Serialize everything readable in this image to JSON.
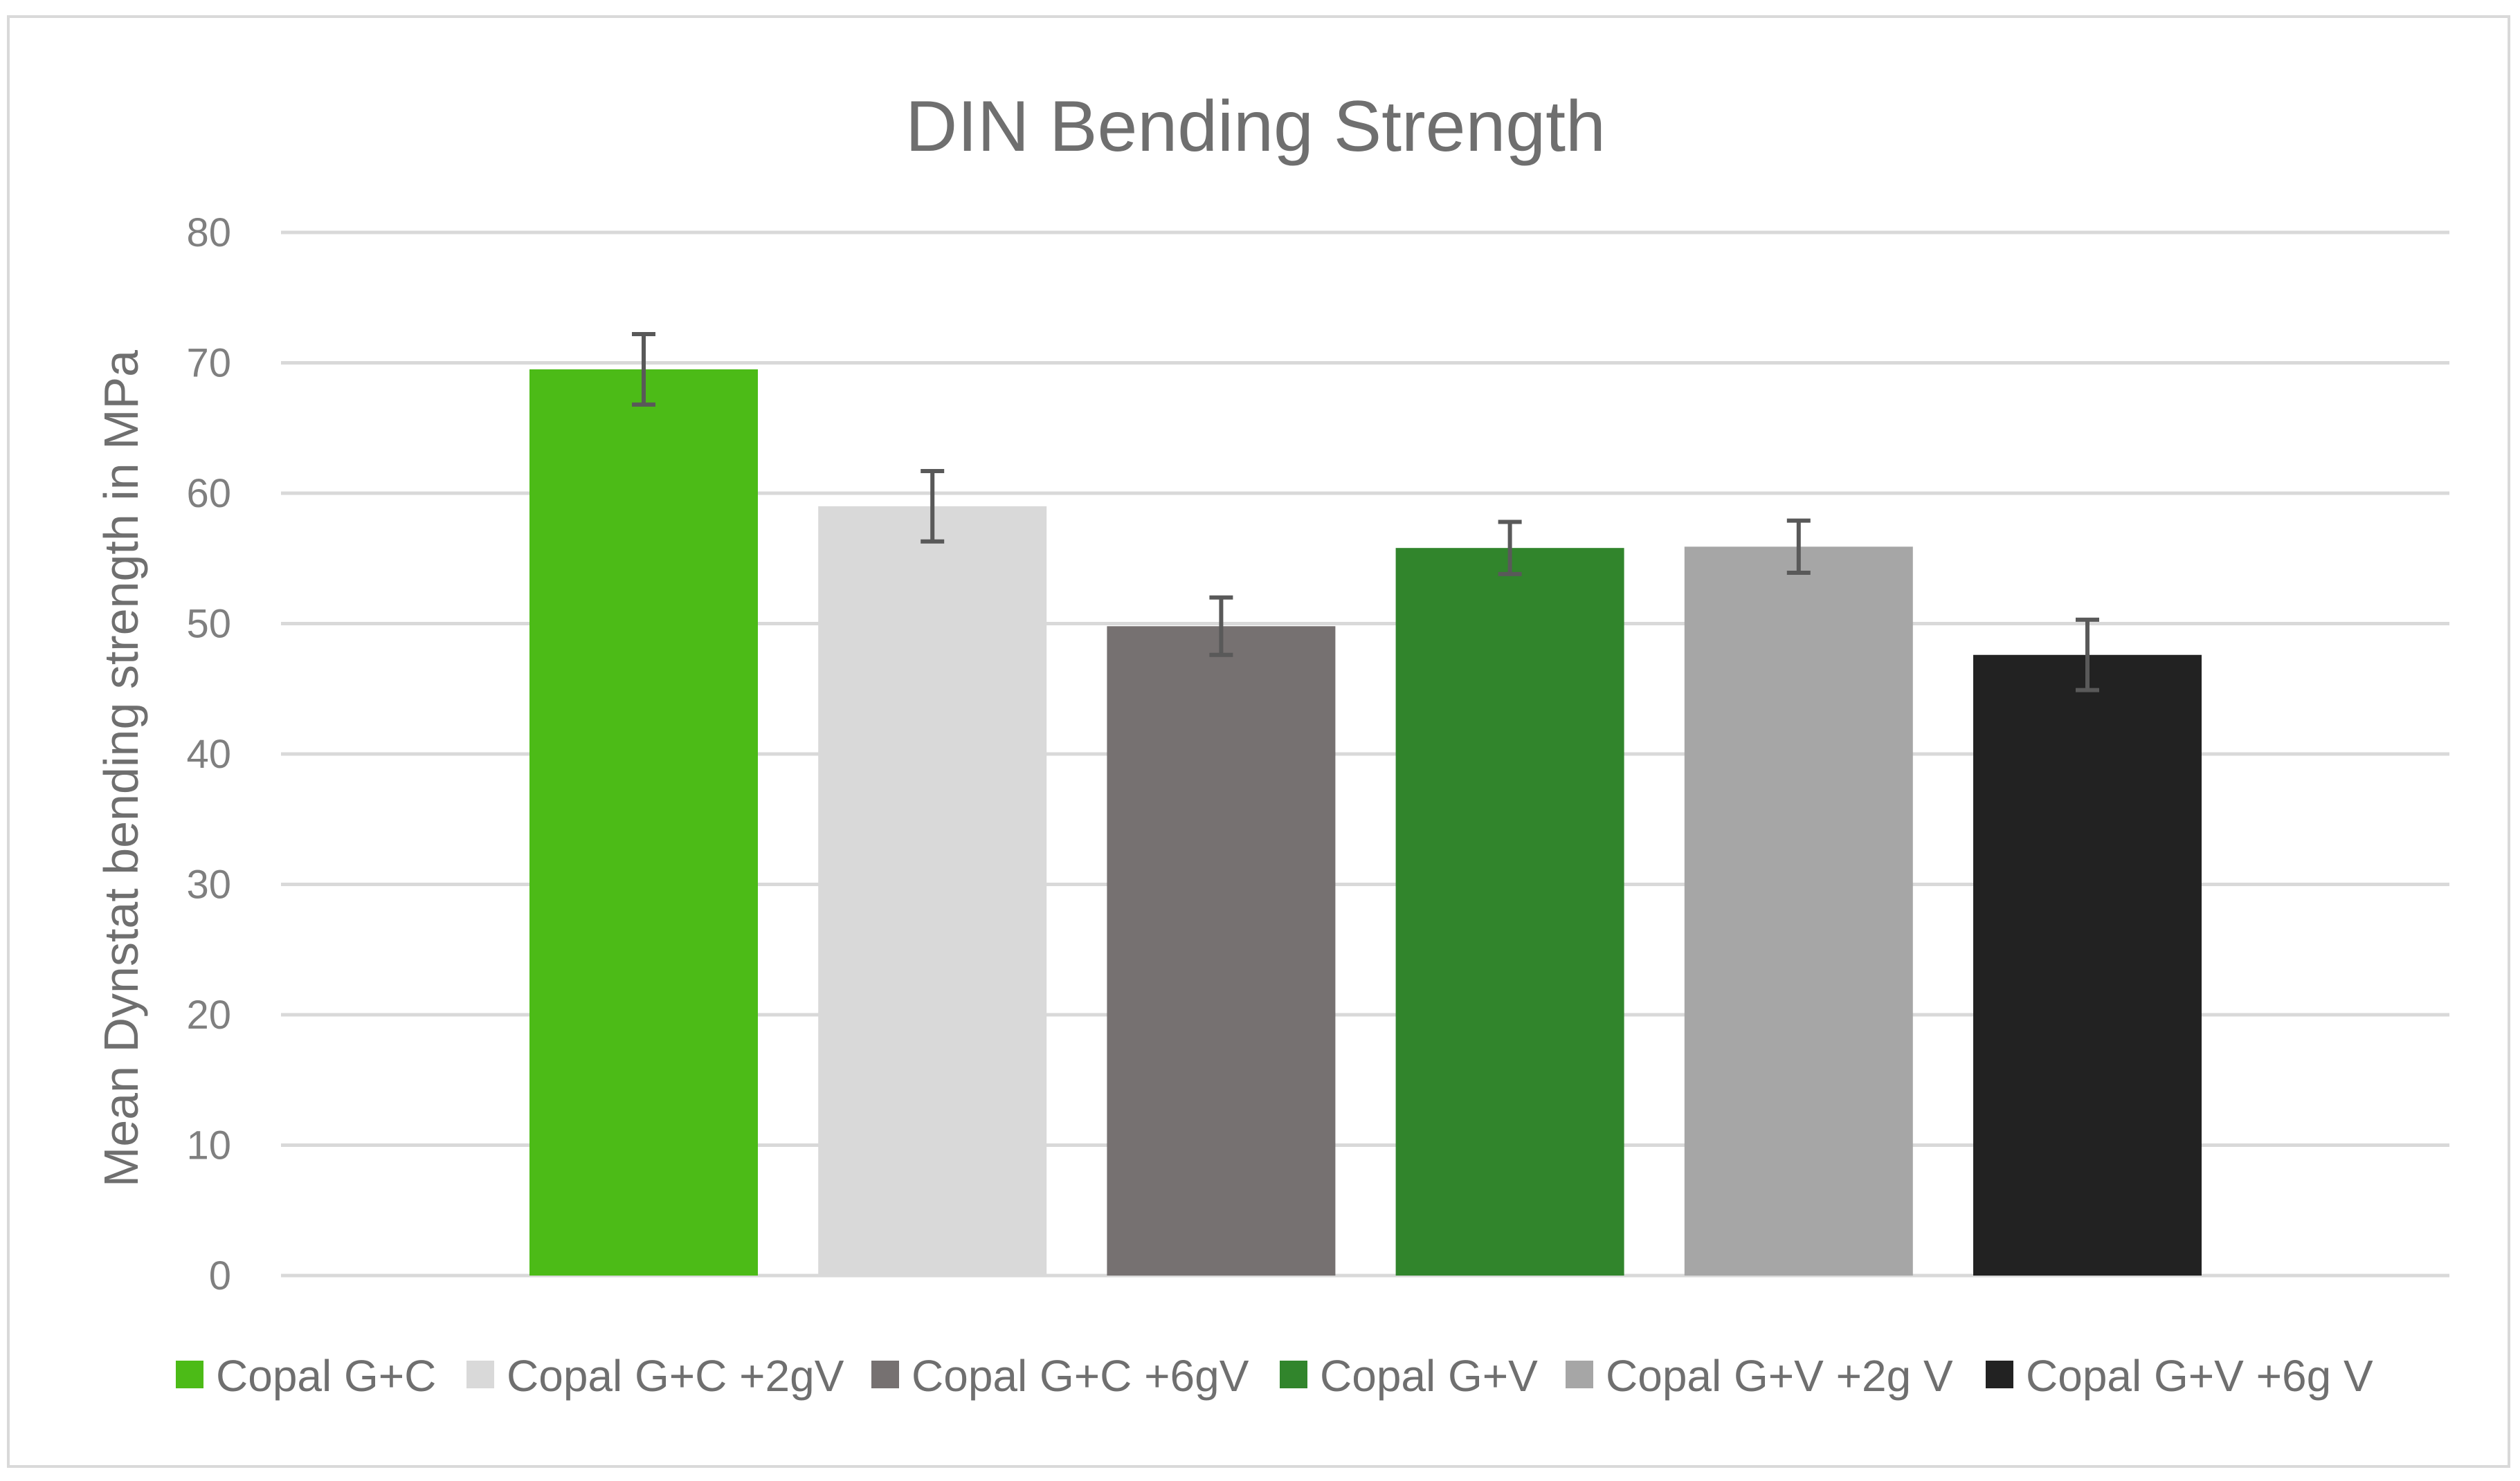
{
  "chart_data": {
    "type": "bar",
    "title": "DIN Bending Strength",
    "xlabel": "",
    "ylabel": "Mean Dynstat bending strength in MPa",
    "ylim": [
      0,
      80
    ],
    "yticks": [
      "0",
      "10",
      "20",
      "30",
      "40",
      "50",
      "60",
      "70",
      "80"
    ],
    "grid": true,
    "legend_position": "bottom",
    "series": [
      {
        "name": "Copal G+C",
        "value": 69.5,
        "error": 2.7,
        "color": "#4cbb17"
      },
      {
        "name": "Copal G+C +2gV",
        "value": 59.0,
        "error": 2.7,
        "color": "#d9d9d9"
      },
      {
        "name": "Copal G+C +6gV",
        "value": 49.8,
        "error": 2.2,
        "color": "#767171"
      },
      {
        "name": "Copal G+V",
        "value": 55.8,
        "error": 2.0,
        "color": "#31852c"
      },
      {
        "name": "Copal G+V +2g V",
        "value": 55.9,
        "error": 2.0,
        "color": "#a6a6a6"
      },
      {
        "name": "Copal G+V +6g V",
        "value": 47.6,
        "error": 2.7,
        "color": "#222222"
      }
    ]
  }
}
